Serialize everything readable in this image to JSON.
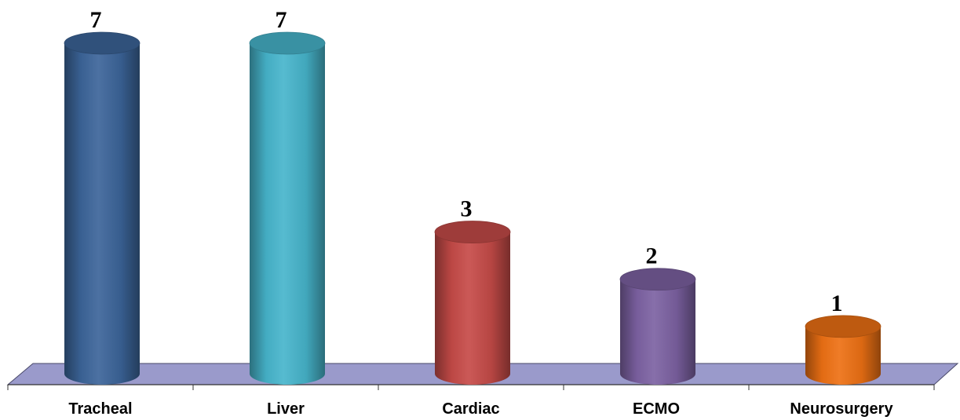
{
  "chart_data": {
    "type": "bar",
    "style": "3d-cylinder",
    "categories": [
      "Tracheal",
      "Liver",
      "Cardiac",
      "ECMO",
      "Neurosurgery"
    ],
    "values": [
      7,
      7,
      3,
      2,
      1
    ],
    "data_labels": [
      "7",
      "7",
      "3",
      "2",
      "1"
    ],
    "colors": [
      "#3C659A",
      "#47B5CC",
      "#C64B48",
      "#7D62A3",
      "#EE7114"
    ],
    "floor_color": "#9A9ACB",
    "ylim": [
      0,
      7
    ],
    "grid": false,
    "legend": "none"
  }
}
